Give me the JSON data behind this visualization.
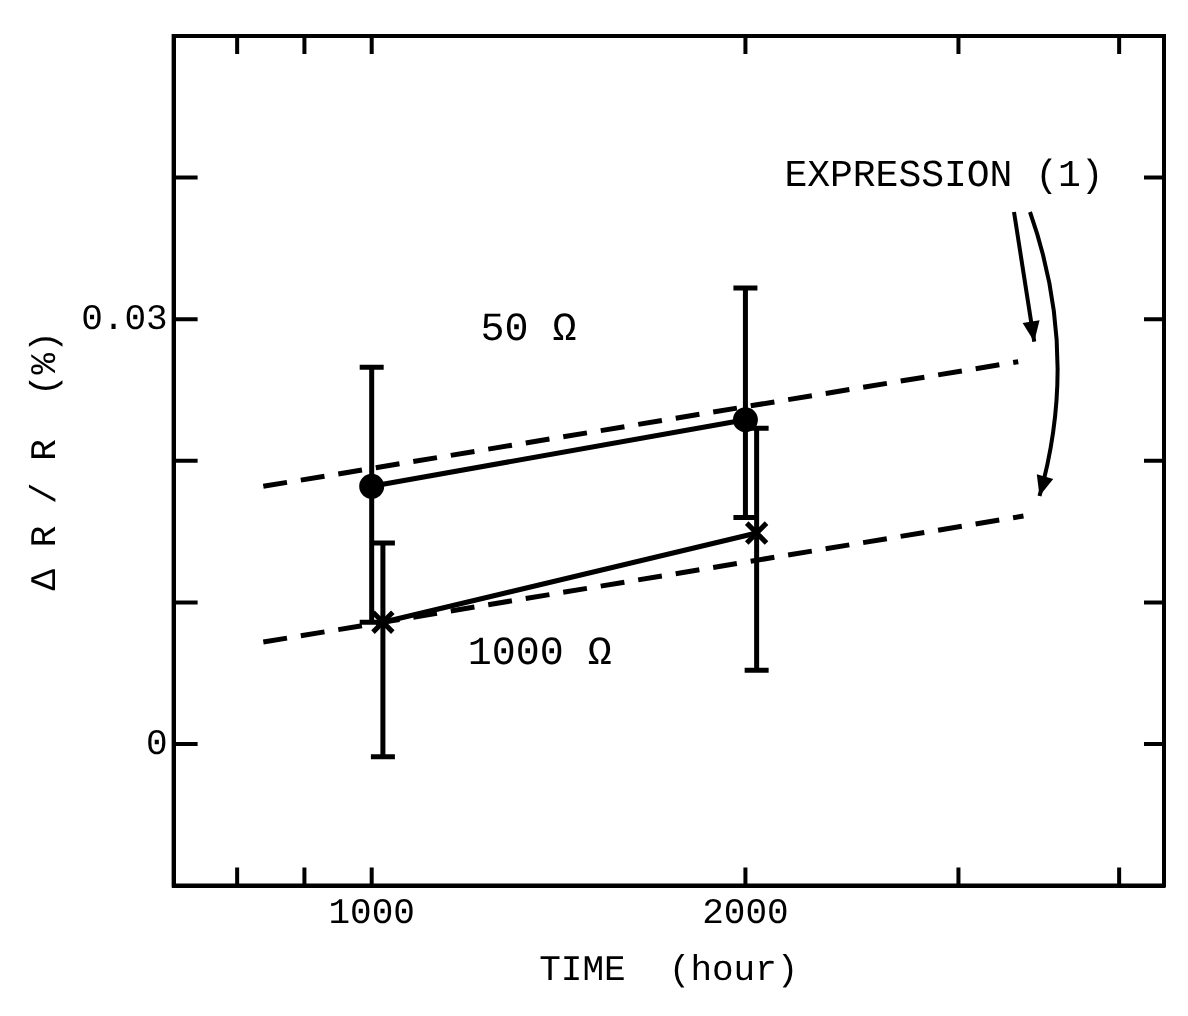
{
  "chart_data": {
    "type": "line",
    "xlabel": "TIME  (hour)",
    "ylabel": "Δ R / R  (%)",
    "xlim": [
      470,
      3120
    ],
    "ylim": [
      -0.01,
      0.05
    ],
    "xticks": [
      {
        "value": 640,
        "label": null
      },
      {
        "value": 820,
        "label": null
      },
      1000,
      2000,
      {
        "value": 2570,
        "label": null
      },
      {
        "value": 3000,
        "label": null
      }
    ],
    "yticks": [
      0,
      {
        "value": 0.01,
        "label": null
      },
      {
        "value": 0.02,
        "label": null
      },
      0.03,
      {
        "value": 0.04,
        "label": null
      }
    ],
    "grid": false,
    "legend": false,
    "series": [
      {
        "name": "50 Ω",
        "color": "#000000",
        "x": [
          1000,
          2000
        ],
        "values": [
          0.0182,
          0.0229
        ],
        "errors": [
          [
            0.0086,
            0.0266
          ],
          [
            0.016,
            0.0322
          ]
        ],
        "marker": "circle",
        "line_style": "solid"
      },
      {
        "name": "1000 Ω",
        "color": "#000000",
        "x": [
          1030,
          2030
        ],
        "values": [
          0.0086,
          0.0149
        ],
        "errors": [
          [
            -0.0009,
            0.0142
          ],
          [
            0.0052,
            0.0223
          ]
        ],
        "marker": "cross",
        "line_style": "solid"
      },
      {
        "color": "#000000",
        "x": [
          710,
          2730
        ],
        "values": [
          0.0182,
          0.027
        ],
        "marker": "none",
        "line_style": "dashed"
      },
      {
        "color": "#000000",
        "x": [
          710,
          2744
        ],
        "values": [
          0.0072,
          0.0161
        ],
        "marker": "none",
        "line_style": "dashed"
      }
    ],
    "annotations": [
      "EXPRESSION (1)"
    ]
  }
}
